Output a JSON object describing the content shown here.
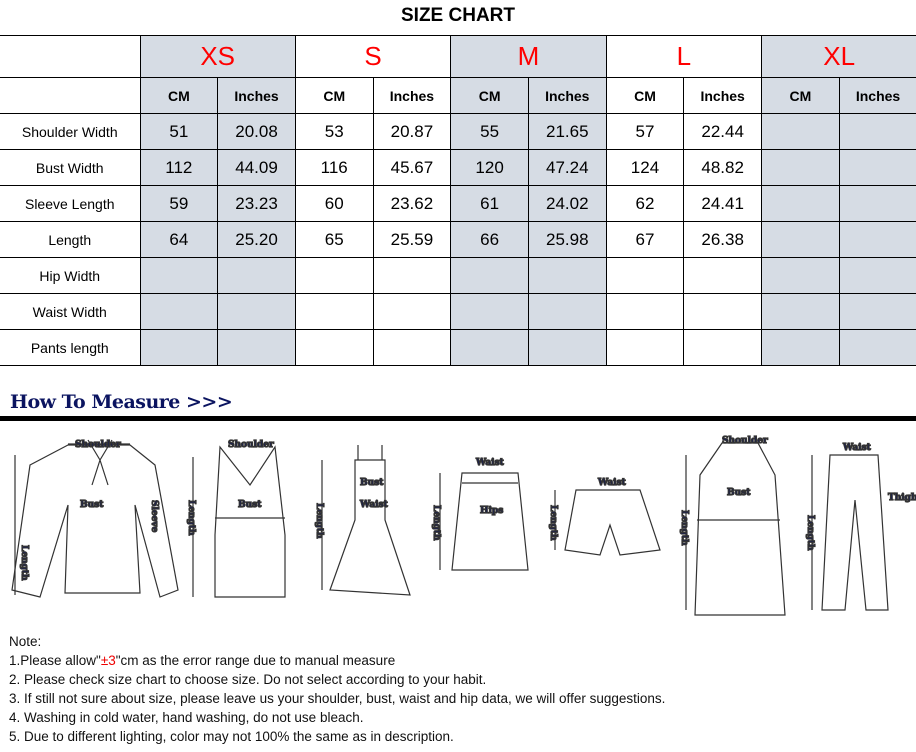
{
  "title": "SIZE CHART",
  "sizes": [
    "XS",
    "S",
    "M",
    "L",
    "XL"
  ],
  "units": {
    "cm": "CM",
    "inches": "Inches"
  },
  "rows": [
    {
      "label": "Shoulder Width",
      "values": [
        "51",
        "20.08",
        "53",
        "20.87",
        "55",
        "21.65",
        "57",
        "22.44",
        "",
        ""
      ]
    },
    {
      "label": "Bust Width",
      "values": [
        "112",
        "44.09",
        "116",
        "45.67",
        "120",
        "47.24",
        "124",
        "48.82",
        "",
        ""
      ]
    },
    {
      "label": "Sleeve Length",
      "values": [
        "59",
        "23.23",
        "60",
        "23.62",
        "61",
        "24.02",
        "62",
        "24.41",
        "",
        ""
      ]
    },
    {
      "label": "Length",
      "values": [
        "64",
        "25.20",
        "65",
        "25.59",
        "66",
        "25.98",
        "67",
        "26.38",
        "",
        ""
      ]
    },
    {
      "label": "Hip Width",
      "values": [
        "",
        "",
        "",
        "",
        "",
        "",
        "",
        "",
        "",
        ""
      ]
    },
    {
      "label": "Waist Width",
      "values": [
        "",
        "",
        "",
        "",
        "",
        "",
        "",
        "",
        "",
        ""
      ]
    },
    {
      "label": "Pants length",
      "values": [
        "",
        "",
        "",
        "",
        "",
        "",
        "",
        "",
        "",
        ""
      ]
    }
  ],
  "shade_color": "#d6dce4",
  "size_color": "#ff0000",
  "how_to_measure": "How To Measure >>>",
  "figure_labels": {
    "shoulder": "Shoulder",
    "bust": "Bust",
    "sleeve": "Sleeve",
    "length": "Length",
    "waist": "Waist",
    "hips": "Hips",
    "thigh": "Thigh"
  },
  "notes": {
    "heading": "Note:",
    "line1_pre": "1.Please allow\"",
    "line1_red": "±3",
    "line1_post": "\"cm as the error range due to manual measure",
    "line2": "2. Please check size chart to choose size. Do not select according to your habit.",
    "line3": "3. If still not sure about size, please leave us your shoulder, bust, waist and hip data, we will offer suggestions.",
    "line4": "4. Washing in cold water, hand washing, do not use bleach.",
    "line5": "5. Due to different lighting, color may not 100% the same as in description."
  }
}
